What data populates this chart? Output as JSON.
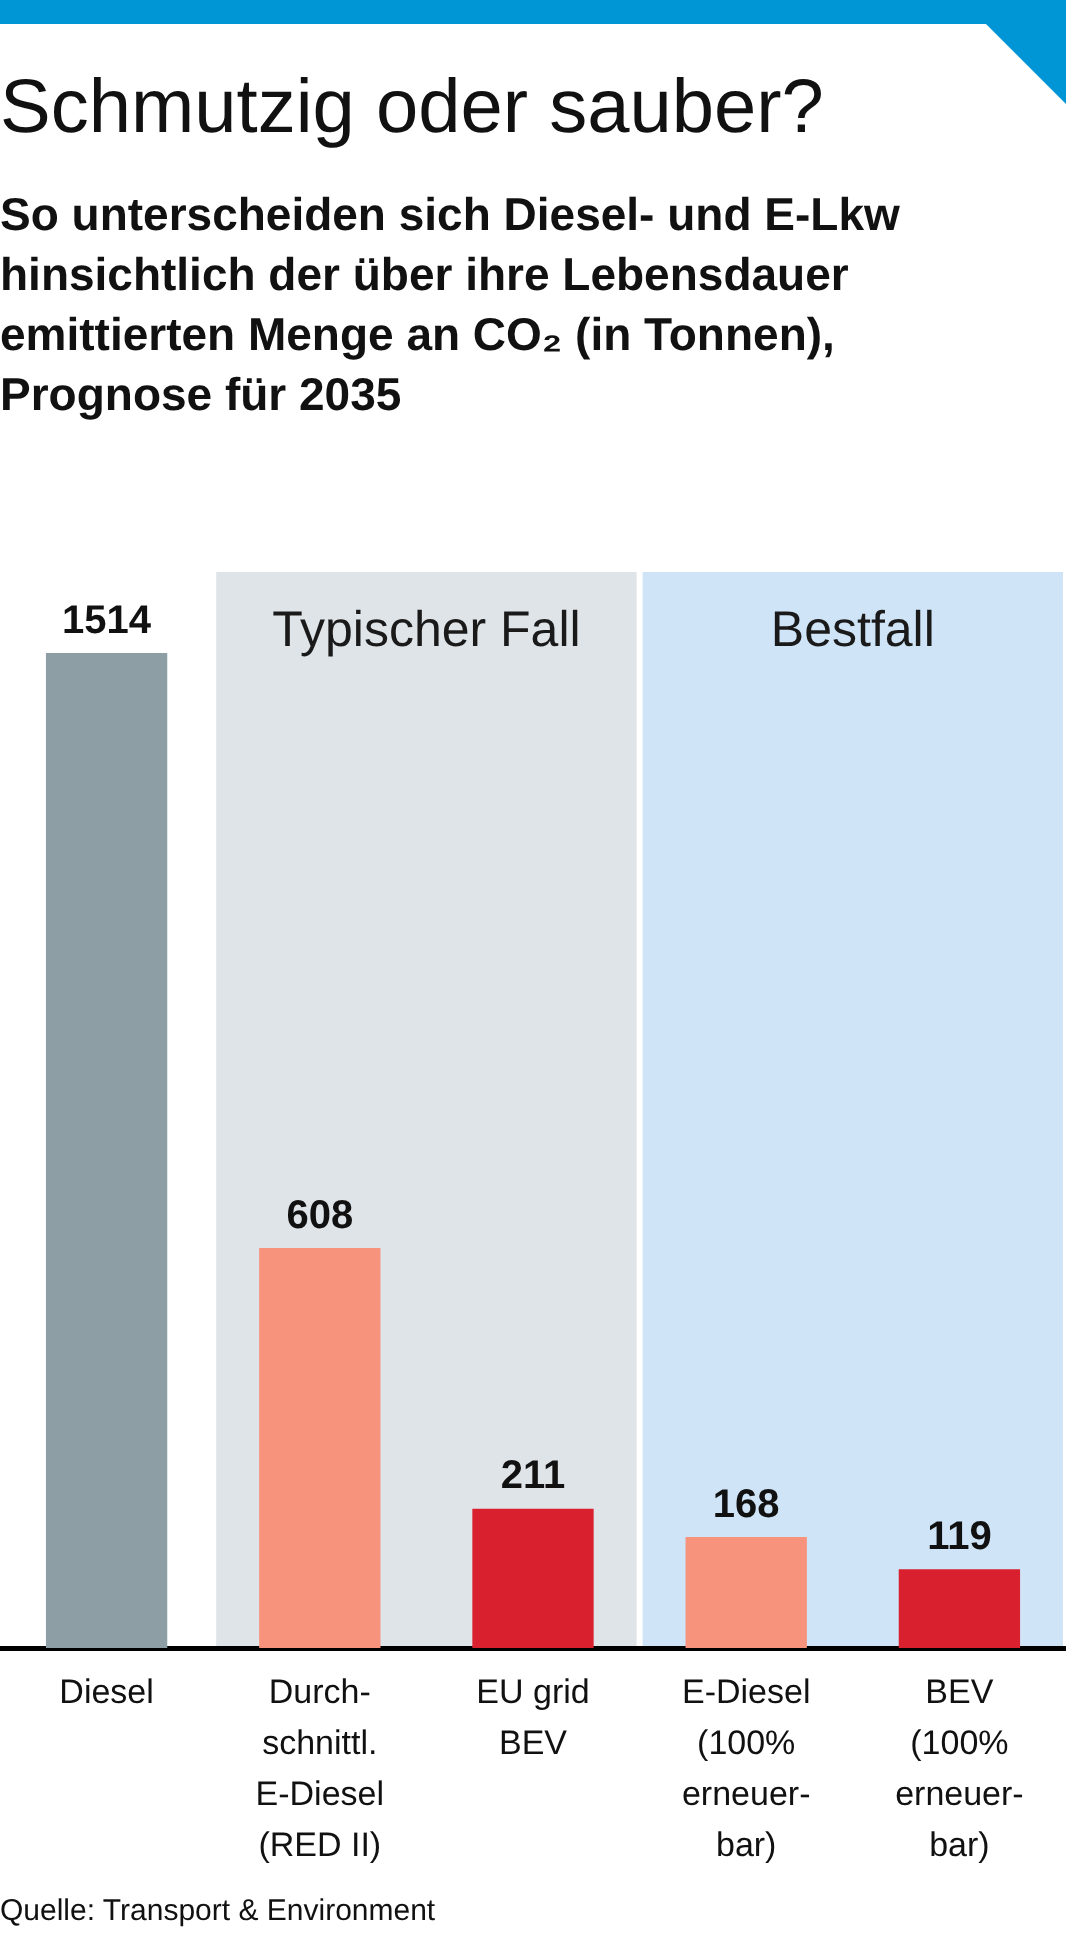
{
  "chart_data": {
    "type": "bar",
    "title": "Schmutzig oder sauber?",
    "subtitle": "So unterscheiden sich Diesel- und E-Lkw hinsichtlich der über ihre Lebensdauer emittierten Menge an CO₂ (in Tonnen), Prognose für 2035",
    "categories": [
      "Diesel",
      "Durch-\nschnittl.\nE-Diesel\n(RED II)",
      "EU grid\nBEV",
      "E-Diesel\n(100%\nerneuer-\nbar)",
      "BEV\n(100%\nerneuer-\nbar)"
    ],
    "values": [
      1514,
      608,
      211,
      168,
      119
    ],
    "colors": [
      "#8d9ea5",
      "#f7927c",
      "#d9202e",
      "#f7927c",
      "#d9202e"
    ],
    "data_labels": true,
    "bands": [
      {
        "axis": "x",
        "from": "Durch-\nschnittl.\nE-Diesel\n(RED II)",
        "to": "EU grid\nBEV",
        "label": "Typischer Fall",
        "color": "#dfe4e8"
      },
      {
        "axis": "x",
        "from": "E-Diesel\n(100%\nerneuer-\nbar)",
        "to": "BEV\n(100%\nerneuer-\nbar)",
        "label": "Bestfall",
        "color": "#cfe4f7"
      }
    ],
    "annotations": [
      "Quelle: Transport & Environment"
    ]
  }
}
